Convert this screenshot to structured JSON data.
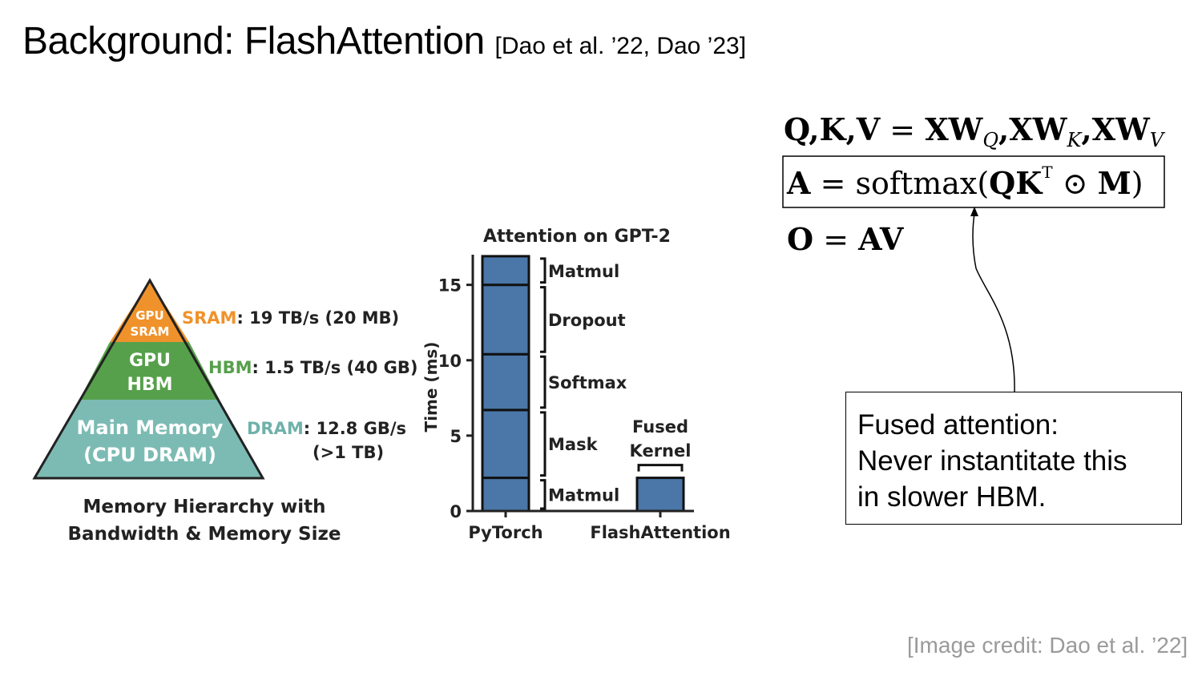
{
  "slide": {
    "title": "Background: FlashAttention",
    "citation": "[Dao et al. ’22, Dao ’23]",
    "credit": "[Image credit: Dao et al. ’22]"
  },
  "pyramid": {
    "levels": [
      {
        "name_lines": [
          "GPU",
          "SRAM"
        ],
        "label": "SRAM",
        "spec": ": 19 TB/s (20 MB)",
        "color": "#f0922b",
        "label_color": "#f0922b"
      },
      {
        "name_lines": [
          "GPU",
          "HBM"
        ],
        "label": "HBM",
        "spec": ": 1.5 TB/s (40 GB)",
        "color": "#56a04b",
        "label_color": "#56a04b"
      },
      {
        "name_lines": [
          "Main Memory",
          "(CPU DRAM)"
        ],
        "label": "DRAM",
        "spec": ": 12.8 GB/s",
        "spec2": "(>1 TB)",
        "color": "#7cbbb3",
        "label_color": "#6fb1aa"
      }
    ],
    "caption_lines": [
      "Memory Hierarchy with",
      "Bandwidth & Memory Size"
    ]
  },
  "chart_data": {
    "type": "bar",
    "title": "Attention on GPT-2",
    "ylabel": "Time (ms)",
    "xlabel": "",
    "ylim": [
      0,
      17
    ],
    "yticks": [
      0,
      5,
      10,
      15
    ],
    "categories": [
      "PyTorch",
      "FlashAttention"
    ],
    "stacks": [
      {
        "category": "PyTorch",
        "segments": [
          {
            "name": "Matmul",
            "value": 2.2
          },
          {
            "name": "Mask",
            "value": 4.5
          },
          {
            "name": "Softmax",
            "value": 3.7
          },
          {
            "name": "Dropout",
            "value": 4.6
          },
          {
            "name": "Matmul",
            "value": 1.9
          }
        ]
      },
      {
        "category": "FlashAttention",
        "segments": [
          {
            "name": "Fused Kernel",
            "value": 2.2
          }
        ]
      }
    ],
    "fused_label_lines": [
      "Fused",
      "Kernel"
    ],
    "bar_color": "#4a76a8",
    "grid": false,
    "legend": "none"
  },
  "equations": {
    "eq1": {
      "lhs": "Q,K,V",
      "eq": " = ",
      "r1": "XW",
      "s1": "Q",
      "r2": ",XW",
      "s2": "K",
      "r3": ",XW",
      "s3": "V"
    },
    "eq2": {
      "lhs": "A",
      "eq": " = ",
      "fn": "softmax(",
      "arg": "QK",
      "sup": "T",
      "op": " ⊙ ",
      "m": "M",
      "close": ")"
    },
    "eq3": {
      "lhs": "O",
      "eq": " = ",
      "rhs": "AV"
    }
  },
  "callout": {
    "lines": [
      "Fused attention:",
      "Never instantitate this",
      "in slower HBM."
    ]
  }
}
